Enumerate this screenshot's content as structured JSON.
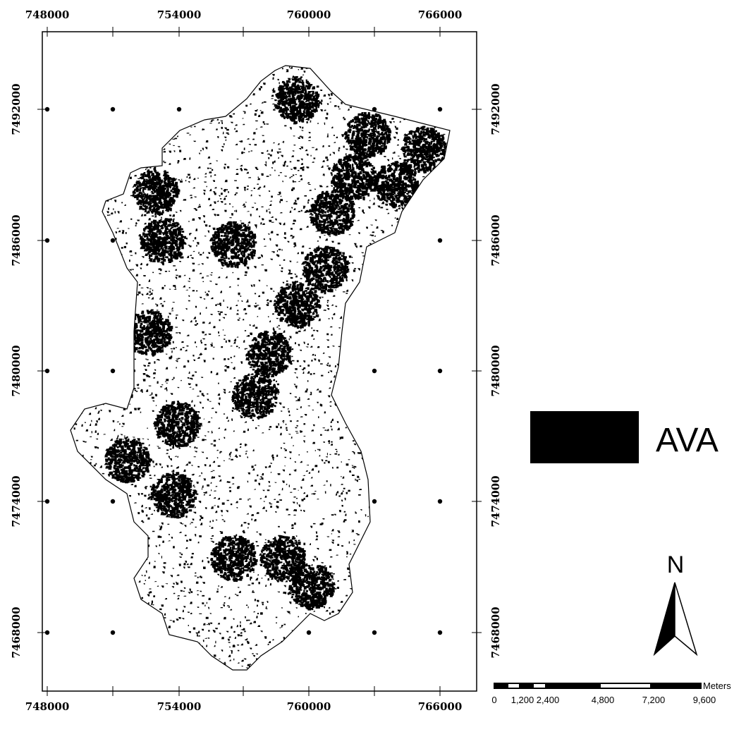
{
  "map": {
    "x_labels": [
      "748000",
      "754000",
      "760000",
      "766000"
    ],
    "y_labels": [
      "7492000",
      "7486000",
      "7480000",
      "7474000",
      "7468000"
    ],
    "legend": {
      "label": "AVA"
    },
    "north": "N",
    "scale_bar": {
      "labels": [
        "0",
        "1,200",
        "2,400",
        "4,800",
        "7,200",
        "9,600"
      ],
      "unit": "Meters"
    }
  }
}
